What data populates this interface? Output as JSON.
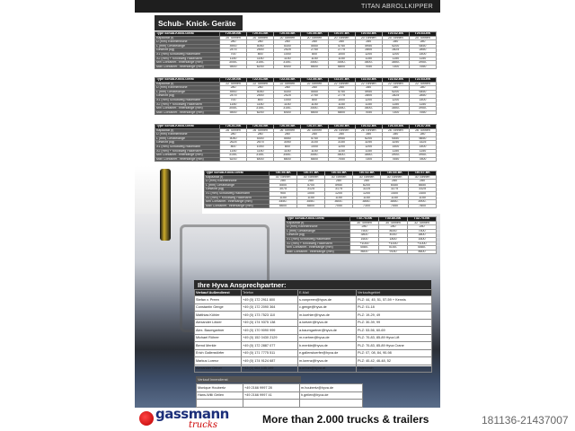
{
  "header": {
    "title": "TITAN ABROLLKIPPER"
  },
  "section_title": "Schub- Knick- Geräte",
  "row_labels": [
    "Type  Schub-Knick-Gerät",
    "Kapazität (t)",
    "D (mm)   Rahmenhöhe",
    "L (mm)   Gerätelänge",
    "Gewicht (kg)",
    "X1 (mm) Schubweg Hakenarm",
    "X2 (mm) + Knickweg Hakenarm",
    "Min Container- Innenlänge (mm)",
    "Max Container- Innenlänge (mm)"
  ],
  "tables": [
    {
      "types": [
        "T20-49-BK",
        "T20-51-BK",
        "T20-53-BK",
        "T20-55-BK",
        "T20-57-BK",
        "T20-60-BK",
        "T20-62-BK",
        "T20-63-BK"
      ],
      "rows": [
        [
          "20 Tonnen",
          "20 Tonnen",
          "20 Tonnen",
          "20 Tonnen",
          "20 Tonnen",
          "20 Tonnen",
          "20 Tonnen",
          "20 Tonnen"
        ],
        [
          "280",
          "280",
          "280",
          "280",
          "280",
          "280",
          "280",
          "280"
        ],
        [
          "4900",
          "5050",
          "5300",
          "5550",
          "5750",
          "5950",
          "6200",
          "6450"
        ],
        [
          "2475",
          "2500",
          "2525",
          "2750",
          "2775",
          "2800",
          "2825",
          "2850"
        ],
        [
          "700",
          "800",
          "1000",
          "800",
          "1000",
          "1200",
          "1200",
          "1400"
        ],
        [
          "1150",
          "1150",
          "1150",
          "1150",
          "1150",
          "1150",
          "1150",
          "1150"
        ],
        [
          "3050-",
          "3150-",
          "3150-",
          "3450-",
          "3550-",
          "3600-",
          "3850-",
          "3950-"
        ],
        [
          "5500",
          "6200",
          "6400",
          "6600",
          "6800",
          "7050",
          "7300",
          "7550"
        ]
      ]
    },
    {
      "types": [
        "T22-49-BK",
        "T22-51-BK",
        "T22-53-BK",
        "T22-55-BK",
        "T22-57-BK",
        "T22-60-BK",
        "T22-62-BK",
        "T22-63-BK"
      ],
      "rows": [
        [
          "22 Tonnen",
          "22 Tonnen",
          "22 Tonnen",
          "22 Tonnen",
          "22 Tonnen",
          "22 Tonnen",
          "22 Tonnen",
          "22 Tonnen"
        ],
        [
          "280",
          "280",
          "280",
          "280",
          "280",
          "280",
          "280",
          "280"
        ],
        [
          "4900",
          "5050",
          "5300",
          "5550",
          "5750",
          "5950",
          "6200",
          "6450"
        ],
        [
          "2475",
          "2500",
          "2525",
          "2750",
          "2775",
          "2800",
          "2825",
          "2850"
        ],
        [
          "700",
          "800",
          "1000",
          "800",
          "1000",
          "1200",
          "1200",
          "1400"
        ],
        [
          "1150",
          "1150",
          "1150",
          "1150",
          "1150",
          "1150",
          "1150",
          "1150"
        ],
        [
          "3050-",
          "3150-",
          "3150-",
          "3450-",
          "3550-",
          "3600-",
          "3850-",
          "3950-"
        ],
        [
          "5500",
          "6200",
          "6400",
          "6600",
          "6800",
          "7050",
          "7300",
          "7550"
        ]
      ]
    },
    {
      "types": [
        "T26-51-BK",
        "T26-53-BK",
        "T26-55-BK",
        "T26-57-BK",
        "T26-60-BK",
        "T26-62-BK",
        "T26-65-BK",
        "T26-67-BK"
      ],
      "rows": [
        [
          "26 Tonnen",
          "26 Tonnen",
          "26 Tonnen",
          "26 Tonnen",
          "26 Tonnen",
          "26 Tonnen",
          "26 Tonnen",
          "26 Tonnen"
        ],
        [
          "280",
          "280",
          "280",
          "280",
          "280",
          "280",
          "280",
          "280"
        ],
        [
          "5050",
          "5300",
          "5550",
          "5750",
          "5950",
          "6200",
          "6450",
          "6650"
        ],
        [
          "2625",
          "2675",
          "3050",
          "3100",
          "3150",
          "3250",
          "3250",
          "3325"
        ],
        [
          "800",
          "1000",
          "800",
          "1000",
          "1200",
          "1200",
          "1400",
          "1400"
        ],
        [
          "1150",
          "1150",
          "1150",
          "1150",
          "1150",
          "1150",
          "1150",
          "1150"
        ],
        [
          "3150-",
          "3150-",
          "3450-",
          "3550-",
          "3600-",
          "3850-",
          "3900-",
          "3950-"
        ],
        [
          "6200",
          "6400",
          "6600",
          "6800",
          "7050",
          "7300",
          "7550",
          "7800"
        ]
      ]
    },
    {
      "types": [
        "T30-55-BK",
        "T30-57-BK",
        "T30-60-BK",
        "T30-62-BK",
        "T30-65-BK",
        "T30-67-BK"
      ],
      "rows": [
        [
          "30 Tonnen",
          "30 Tonnen",
          "30 Tonnen",
          "30 Tonnen",
          "30 Tonnen",
          "30 Tonnen"
        ],
        [
          "280",
          "280",
          "280",
          "280",
          "280",
          "280"
        ],
        [
          "5500",
          "5700",
          "5950",
          "6200",
          "6450",
          "6650"
        ],
        [
          "3075",
          "3125",
          "3175",
          "3225",
          "3275",
          "3325"
        ],
        [
          "900",
          "1000",
          "1200",
          "1200",
          "1400",
          "1400"
        ],
        [
          "1150",
          "1150",
          "1150",
          "1150",
          "1150",
          "1150"
        ],
        [
          "3450-",
          "3550-",
          "3600-",
          "3850-",
          "3850-",
          "3900-"
        ],
        [
          "6600",
          "6800",
          "7050",
          "7300",
          "7550",
          "7800"
        ]
      ]
    },
    {
      "types": [
        "T30-75-BK",
        "T30-80-BK",
        "T32-75-BK"
      ],
      "rows": [
        [
          "30 Tonnen",
          "30 Tonnen",
          "32 Tonnen"
        ],
        [
          "280",
          "280",
          "280"
        ],
        [
          "7500",
          "8000",
          "7500"
        ],
        [
          "3800",
          "4000",
          "3800"
        ],
        [
          "1600",
          "1800",
          "1600"
        ],
        [
          "+1000",
          "+1000",
          "+1000"
        ],
        [
          "4580-",
          "5150-",
          "4580-"
        ],
        [
          "8600",
          "9150",
          "8600"
        ]
      ]
    }
  ],
  "contacts": {
    "title": "Ihre Hyva Ansprechpartner:",
    "headers": [
      "Verkauf Außendienst",
      "Telefon",
      "E-Mail",
      "Verkaufsgebiet"
    ],
    "rows": [
      [
        "Stefan v. Preen",
        "+49 (0) 172 2911 800",
        "s.vonpreen@hyva.de",
        "PLZ: 44, 45, 51, 57-59 + Kennis"
      ],
      [
        "Constantin Genge",
        "+49 (0) 172 2090 364",
        "c.genge@hyva.de",
        "PLZ: 01-18"
      ],
      [
        "Matthias Köhler",
        "+49 (0) 173 7523 110",
        "m.koehler@hyva.de",
        "PLZ: 19-29, 49"
      ],
      [
        "Alexander Lötzer",
        "+49 (0) 174 9375 138",
        "a.loetzer@hyva.de",
        "PLZ: 30-39, 99"
      ],
      [
        "Alex. Baumgartner",
        "+49 (0) 170 9090 999",
        "a.baumgartner@hyva.de",
        "PLZ: 53-56, 60-69"
      ],
      [
        "Michael Röhrer",
        "+49 (0) 152 0430 2129",
        "m.roehrer@hyva.de",
        "PLZ: 70-83, 85-89 Hyva Lift"
      ],
      [
        "Bernd Merkle",
        "+49 (0) 172 2887 077",
        "b.merkle@hyva.de",
        "PLZ: 70-83, 85-89 Hyva Crane"
      ],
      [
        "Erich Gallenstörfer",
        "+49 (0) 171 7775 511",
        "e.gallenstoerfer@hyva.de",
        "PLZ: 07, 08, 84, 90-98"
      ],
      [
        "Markus Lorenz",
        "+49 (0) 174 9124 687",
        "m.lorenz@hyva.de",
        "PLZ: 40-42, 46-48, 52"
      ],
      [
        "Alexander Ortner",
        "+43 (0) 664 135 199",
        "a.ortner@hyva.at",
        "Österreich"
      ]
    ],
    "innendienst_title": "Verkauf Innendienst",
    "innendienst": [
      [
        "Monique Houbertz",
        "+49 2166 9997 28",
        "m.houbertz@hyva.de"
      ],
      [
        "Hans-Willi Geilen",
        "+49 2166 9997 41",
        "h.geilen@hyva.de"
      ],
      [
        "",
        "",
        ""
      ]
    ]
  },
  "footer": {
    "logo": "gassmann trucks",
    "slogan": "More than 2.000 trucks & trailers",
    "ad_id": "181136-21437007"
  }
}
